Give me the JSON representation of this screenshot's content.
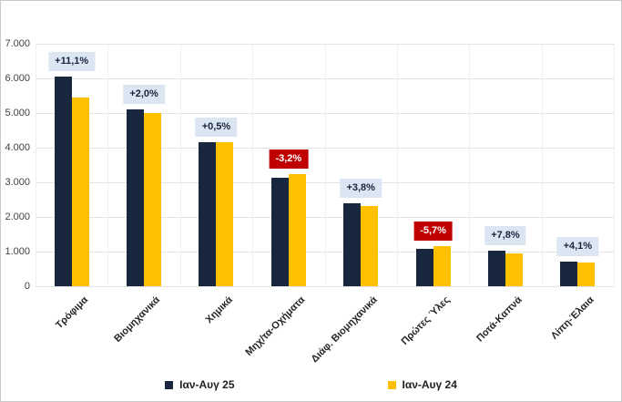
{
  "colors": {
    "series_25": "#18263e",
    "series_24": "#ffc000",
    "badge_positive_bg": "#dce6f2",
    "badge_positive_text": "#17253e",
    "badge_negative_bg": "#c00000",
    "badge_negative_text": "#ffffff",
    "gridline": "#e3e3e3",
    "gridline_vertical": "#f0f0f0",
    "axis_text": "#3f3f3f"
  },
  "legend": {
    "items": [
      {
        "label": "Ιαν-Αυγ 25",
        "color": "#18263e"
      },
      {
        "label": "Ιαν-Αυγ 24",
        "color": "#ffc000"
      }
    ]
  },
  "chart_data": {
    "type": "bar",
    "title": "",
    "categories": [
      "Τρόφιμα",
      "Βιομηχανικά",
      "Χημικά",
      "Μηχ/τα-Οχήματα",
      "Διάφ. Βιομηχανικά",
      "Πρώτες Ύλες",
      "Ποτά-Καπνά",
      "Λίπη-Έλαια"
    ],
    "series": [
      {
        "name": "Ιαν-Αυγ 25",
        "values": [
          6050,
          5100,
          4170,
          3130,
          2400,
          1090,
          1035,
          700
        ]
      },
      {
        "name": "Ιαν-Αυγ 24",
        "values": [
          5445,
          5000,
          4150,
          3235,
          2310,
          1155,
          960,
          672
        ]
      }
    ],
    "annotations": [
      {
        "text": "+11,1%",
        "type": "positive"
      },
      {
        "text": "+2,0%",
        "type": "positive"
      },
      {
        "text": "+0,5%",
        "type": "positive"
      },
      {
        "text": "-3,2%",
        "type": "negative"
      },
      {
        "text": "+3,8%",
        "type": "positive"
      },
      {
        "text": "-5,7%",
        "type": "negative"
      },
      {
        "text": "+7,8%",
        "type": "positive"
      },
      {
        "text": "+4,1%",
        "type": "positive"
      }
    ],
    "ylim": [
      0,
      7000
    ],
    "yticks": [
      "7.000",
      "6.000",
      "5.000",
      "4.000",
      "3.000",
      "2.000",
      "1.000",
      "0"
    ],
    "grid": "horizontal-major",
    "legend_position": "bottom",
    "xlabel": "",
    "ylabel": ""
  }
}
